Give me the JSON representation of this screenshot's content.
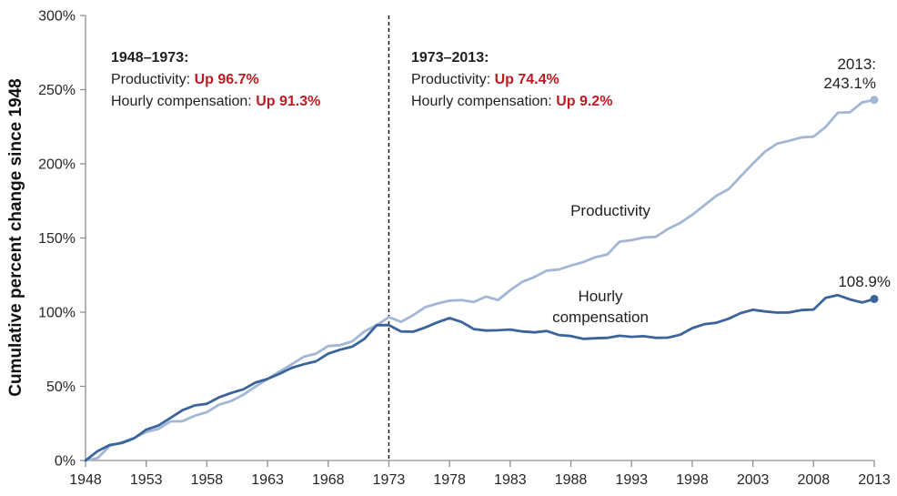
{
  "colors": {
    "productivity_line": "#a2b7d5",
    "compensation_line": "#3a649b",
    "highlight_red": "#bd1a21",
    "axis": "#8f8f8f",
    "dashed_line": "#000000",
    "tick_text": "#262626"
  },
  "y_axis_title": "Cumulative percent change since 1948",
  "annotations": {
    "period1": {
      "heading": "1948–1973:",
      "rows": [
        {
          "label": "Productivity: ",
          "value": "Up 96.7%"
        },
        {
          "label": "Hourly compensation: ",
          "value": "Up 91.3%"
        }
      ]
    },
    "period2": {
      "heading": "1973–2013:",
      "rows": [
        {
          "label": "Productivity: ",
          "value": "Up 74.4%"
        },
        {
          "label": "Hourly compensation: ",
          "value": "Up 9.2%"
        }
      ]
    },
    "productivity_series_label": "Productivity",
    "compensation_series_label": "Hourly\ncompensation",
    "productivity_end_label": "2013:\n243.1%",
    "compensation_end_label": "108.9%"
  },
  "chart_data": {
    "type": "line",
    "title": "",
    "xlabel": "",
    "ylabel": "Cumulative percent change since 1948",
    "xlim": [
      1948,
      2013
    ],
    "ylim": [
      0,
      300
    ],
    "grid": false,
    "legend_position": "inline-labels",
    "vline_x": 1973,
    "x_ticks": [
      {
        "value": 1948,
        "label": "1948"
      },
      {
        "value": 1953,
        "label": "1953"
      },
      {
        "value": 1958,
        "label": "1958"
      },
      {
        "value": 1963,
        "label": "1963"
      },
      {
        "value": 1968,
        "label": "1968"
      },
      {
        "value": 1973,
        "label": "1973"
      },
      {
        "value": 1978,
        "label": "1978"
      },
      {
        "value": 1983,
        "label": "1983"
      },
      {
        "value": 1988,
        "label": "1988"
      },
      {
        "value": 1993,
        "label": "1993"
      },
      {
        "value": 1998,
        "label": "1998"
      },
      {
        "value": 2003,
        "label": "2003"
      },
      {
        "value": 2008,
        "label": "2008"
      },
      {
        "value": 2013,
        "label": "2013"
      }
    ],
    "y_ticks": [
      {
        "value": 0,
        "label": "0%"
      },
      {
        "value": 50,
        "label": "50%"
      },
      {
        "value": 100,
        "label": "100%"
      },
      {
        "value": 150,
        "label": "150%"
      },
      {
        "value": 200,
        "label": "200%"
      },
      {
        "value": 250,
        "label": "250%"
      },
      {
        "value": 300,
        "label": "300%"
      }
    ],
    "x": [
      1948,
      1949,
      1950,
      1951,
      1952,
      1953,
      1954,
      1955,
      1956,
      1957,
      1958,
      1959,
      1960,
      1961,
      1962,
      1963,
      1964,
      1965,
      1966,
      1967,
      1968,
      1969,
      1970,
      1971,
      1972,
      1973,
      1974,
      1975,
      1976,
      1977,
      1978,
      1979,
      1980,
      1981,
      1982,
      1983,
      1984,
      1985,
      1986,
      1987,
      1988,
      1989,
      1990,
      1991,
      1992,
      1993,
      1994,
      1995,
      1996,
      1997,
      1998,
      1999,
      2000,
      2001,
      2002,
      2003,
      2004,
      2005,
      2006,
      2007,
      2008,
      2009,
      2010,
      2011,
      2012,
      2013
    ],
    "series": [
      {
        "name": "Productivity",
        "color": "#a2b7d5",
        "end_marker": true,
        "values": [
          0.0,
          1.6,
          9.9,
          12.3,
          15.2,
          19.2,
          21.2,
          26.3,
          26.5,
          30.2,
          32.6,
          37.6,
          40.1,
          44.3,
          49.8,
          55.0,
          60.0,
          64.9,
          70.0,
          72.0,
          77.2,
          77.8,
          80.4,
          87.1,
          91.2,
          96.7,
          93.5,
          98.0,
          103.4,
          105.8,
          107.8,
          108.1,
          106.8,
          110.5,
          108.2,
          114.8,
          120.5,
          123.7,
          128.0,
          128.7,
          131.4,
          133.7,
          137.0,
          138.9,
          147.5,
          148.5,
          150.3,
          150.8,
          156.1,
          160.1,
          165.6,
          172.1,
          178.5,
          182.9,
          191.6,
          200.2,
          208.3,
          213.6,
          215.6,
          217.8,
          218.3,
          224.9,
          234.4,
          234.8,
          241.4,
          243.1
        ]
      },
      {
        "name": "Hourly compensation",
        "color": "#3a649b",
        "end_marker": true,
        "values": [
          0.0,
          6.3,
          10.5,
          11.8,
          15.0,
          20.8,
          23.5,
          28.7,
          33.9,
          37.1,
          38.2,
          42.6,
          45.5,
          48.0,
          52.5,
          55.0,
          58.5,
          62.5,
          64.9,
          66.9,
          72.0,
          74.7,
          76.8,
          82.1,
          91.2,
          91.3,
          87.0,
          86.8,
          89.7,
          93.1,
          96.0,
          93.4,
          88.6,
          87.6,
          87.8,
          88.3,
          87.0,
          86.4,
          87.3,
          84.6,
          83.9,
          82.0,
          82.4,
          82.7,
          84.1,
          83.4,
          83.8,
          82.7,
          82.8,
          84.8,
          89.2,
          91.9,
          92.9,
          95.6,
          99.4,
          101.6,
          100.5,
          99.7,
          99.8,
          101.4,
          101.8,
          109.7,
          111.5,
          108.6,
          106.5,
          108.9
        ]
      }
    ]
  }
}
